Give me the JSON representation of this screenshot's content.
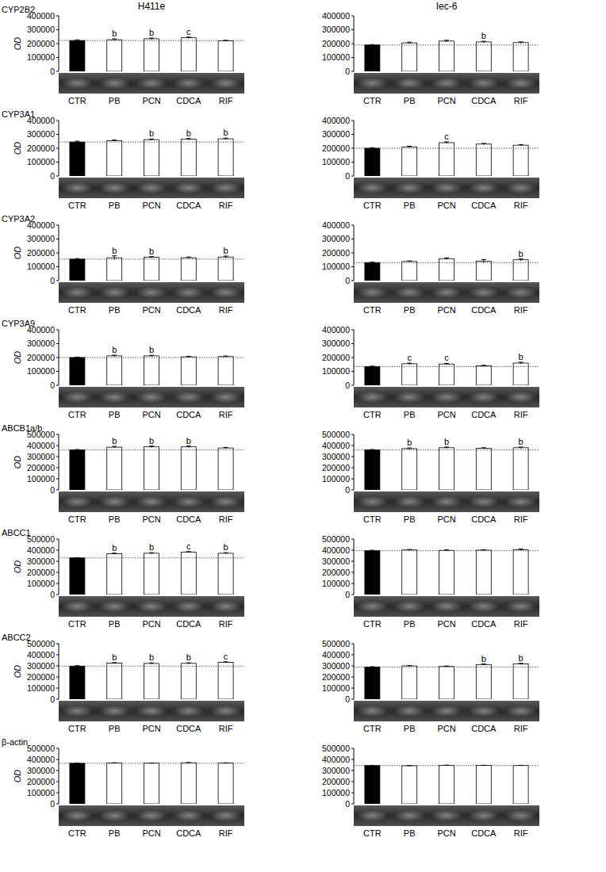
{
  "chart_data": [
    {
      "type": "bar",
      "title": "CYP2B2",
      "subtitle": "H411e",
      "y_label": "OD",
      "categories": [
        "CTR",
        "PB",
        "PCN",
        "CDCA",
        "RIF"
      ],
      "values": [
        222000,
        228000,
        235000,
        242000,
        220000
      ],
      "errors": [
        5000,
        6000,
        5000,
        5000,
        4000
      ],
      "annotations": [
        null,
        "b",
        "b",
        "c",
        null
      ],
      "colors": [
        "#000000",
        "#ffffff",
        "#ffffff",
        "#ffffff",
        "#ffffff"
      ],
      "ylim": [
        0,
        400000
      ],
      "yticks": [
        0,
        100000,
        200000,
        300000,
        400000
      ]
    },
    {
      "type": "bar",
      "subtitle": "Iec-6",
      "categories": [
        "CTR",
        "PB",
        "PCN",
        "CDCA",
        "RIF"
      ],
      "values": [
        190000,
        205000,
        218000,
        212000,
        207000
      ],
      "errors": [
        3000,
        5000,
        6000,
        5000,
        5000
      ],
      "annotations": [
        null,
        null,
        null,
        "b",
        null
      ],
      "colors": [
        "#000000",
        "#ffffff",
        "#ffffff",
        "#ffffff",
        "#ffffff"
      ],
      "ylim": [
        0,
        400000
      ],
      "yticks": [
        0,
        100000,
        200000,
        300000,
        400000
      ]
    },
    {
      "type": "bar",
      "title": "CYP3A1",
      "y_label": "OD",
      "categories": [
        "CTR",
        "PB",
        "PCN",
        "CDCA",
        "RIF"
      ],
      "values": [
        245000,
        255000,
        262000,
        265000,
        268000
      ],
      "errors": [
        6000,
        4000,
        4000,
        5000,
        5000
      ],
      "annotations": [
        null,
        null,
        "b",
        "b",
        "b"
      ],
      "colors": [
        "#000000",
        "#ffffff",
        "#ffffff",
        "#ffffff",
        "#ffffff"
      ],
      "ylim": [
        0,
        400000
      ],
      "yticks": [
        0,
        100000,
        200000,
        300000,
        400000
      ]
    },
    {
      "type": "bar",
      "categories": [
        "CTR",
        "PB",
        "PCN",
        "CDCA",
        "RIF"
      ],
      "values": [
        200000,
        210000,
        240000,
        230000,
        222000
      ],
      "errors": [
        4000,
        5000,
        6000,
        5000,
        4000
      ],
      "annotations": [
        null,
        null,
        "c",
        null,
        null
      ],
      "colors": [
        "#000000",
        "#ffffff",
        "#ffffff",
        "#ffffff",
        "#ffffff"
      ],
      "ylim": [
        0,
        400000
      ],
      "yticks": [
        0,
        100000,
        200000,
        300000,
        400000
      ]
    },
    {
      "type": "bar",
      "title": "CYP3A2",
      "y_label": "OD",
      "categories": [
        "CTR",
        "PB",
        "PCN",
        "CDCA",
        "RIF"
      ],
      "values": [
        155000,
        165000,
        168000,
        165000,
        170000
      ],
      "errors": [
        4000,
        14000,
        5000,
        5000,
        7000
      ],
      "annotations": [
        null,
        "b",
        "b",
        null,
        "b"
      ],
      "colors": [
        "#000000",
        "#ffffff",
        "#ffffff",
        "#ffffff",
        "#ffffff"
      ],
      "ylim": [
        0,
        400000
      ],
      "yticks": [
        0,
        100000,
        200000,
        300000,
        400000
      ]
    },
    {
      "type": "bar",
      "categories": [
        "CTR",
        "PB",
        "PCN",
        "CDCA",
        "RIF"
      ],
      "values": [
        130000,
        138000,
        158000,
        140000,
        150000
      ],
      "errors": [
        3000,
        4000,
        6000,
        12000,
        6000
      ],
      "annotations": [
        null,
        null,
        null,
        null,
        "b"
      ],
      "colors": [
        "#000000",
        "#ffffff",
        "#ffffff",
        "#ffffff",
        "#ffffff"
      ],
      "ylim": [
        0,
        400000
      ],
      "yticks": [
        0,
        100000,
        200000,
        300000,
        400000
      ]
    },
    {
      "type": "bar",
      "title": "CYP3A9",
      "y_label": "OD",
      "categories": [
        "CTR",
        "PB",
        "PCN",
        "CDCA",
        "RIF"
      ],
      "values": [
        200000,
        212000,
        212000,
        205000,
        207000
      ],
      "errors": [
        3000,
        5000,
        4000,
        4000,
        4000
      ],
      "annotations": [
        null,
        "b",
        "b",
        null,
        null
      ],
      "colors": [
        "#000000",
        "#ffffff",
        "#ffffff",
        "#ffffff",
        "#ffffff"
      ],
      "ylim": [
        0,
        400000
      ],
      "yticks": [
        0,
        100000,
        200000,
        300000,
        400000
      ]
    },
    {
      "type": "bar",
      "categories": [
        "CTR",
        "PB",
        "PCN",
        "CDCA",
        "RIF"
      ],
      "values": [
        135000,
        155000,
        153000,
        140000,
        160000
      ],
      "errors": [
        3000,
        5000,
        5000,
        4000,
        6000
      ],
      "annotations": [
        null,
        "c",
        "c",
        null,
        "b"
      ],
      "colors": [
        "#000000",
        "#ffffff",
        "#ffffff",
        "#ffffff",
        "#ffffff"
      ],
      "ylim": [
        0,
        400000
      ],
      "yticks": [
        0,
        100000,
        200000,
        300000,
        400000
      ]
    },
    {
      "type": "bar",
      "title": "ABCB1a/b",
      "y_label": "OD",
      "categories": [
        "CTR",
        "PB",
        "PCN",
        "CDCA",
        "RIF"
      ],
      "values": [
        360000,
        385000,
        388000,
        388000,
        378000
      ],
      "errors": [
        4000,
        8000,
        7000,
        7000,
        5000
      ],
      "annotations": [
        null,
        "b",
        "b",
        "b",
        null
      ],
      "colors": [
        "#000000",
        "#ffffff",
        "#ffffff",
        "#ffffff",
        "#ffffff"
      ],
      "ylim": [
        0,
        500000
      ],
      "yticks": [
        0,
        100000,
        200000,
        300000,
        400000,
        500000
      ]
    },
    {
      "type": "bar",
      "categories": [
        "CTR",
        "PB",
        "PCN",
        "CDCA",
        "RIF"
      ],
      "values": [
        360000,
        372000,
        380000,
        375000,
        380000
      ],
      "errors": [
        4000,
        6000,
        6000,
        5000,
        6000
      ],
      "annotations": [
        null,
        "b",
        "b",
        null,
        "b"
      ],
      "colors": [
        "#000000",
        "#ffffff",
        "#ffffff",
        "#ffffff",
        "#ffffff"
      ],
      "ylim": [
        0,
        500000
      ],
      "yticks": [
        0,
        100000,
        200000,
        300000,
        400000,
        500000
      ]
    },
    {
      "type": "bar",
      "title": "ABCC1",
      "y_label": "OD",
      "categories": [
        "CTR",
        "PB",
        "PCN",
        "CDCA",
        "RIF"
      ],
      "values": [
        330000,
        368000,
        372000,
        382000,
        372000
      ],
      "errors": [
        3000,
        5000,
        5000,
        5000,
        5000
      ],
      "annotations": [
        null,
        "b",
        "b",
        "c",
        "b"
      ],
      "colors": [
        "#000000",
        "#ffffff",
        "#ffffff",
        "#ffffff",
        "#ffffff"
      ],
      "ylim": [
        0,
        500000
      ],
      "yticks": [
        0,
        100000,
        200000,
        300000,
        400000,
        500000
      ]
    },
    {
      "type": "bar",
      "categories": [
        "CTR",
        "PB",
        "PCN",
        "CDCA",
        "RIF"
      ],
      "values": [
        395000,
        402000,
        398000,
        400000,
        405000
      ],
      "errors": [
        4000,
        4000,
        4000,
        4000,
        5000
      ],
      "annotations": [
        null,
        null,
        null,
        null,
        null
      ],
      "colors": [
        "#000000",
        "#ffffff",
        "#ffffff",
        "#ffffff",
        "#ffffff"
      ],
      "ylim": [
        0,
        500000
      ],
      "yticks": [
        0,
        100000,
        200000,
        300000,
        400000,
        500000
      ]
    },
    {
      "type": "bar",
      "title": "ABCC2",
      "y_label": "OD",
      "categories": [
        "CTR",
        "PB",
        "PCN",
        "CDCA",
        "RIF"
      ],
      "values": [
        298000,
        325000,
        322000,
        323000,
        332000
      ],
      "errors": [
        4000,
        5000,
        5000,
        5000,
        5000
      ],
      "annotations": [
        null,
        "b",
        "b",
        "b",
        "c"
      ],
      "colors": [
        "#000000",
        "#ffffff",
        "#ffffff",
        "#ffffff",
        "#ffffff"
      ],
      "ylim": [
        0,
        500000
      ],
      "yticks": [
        0,
        100000,
        200000,
        300000,
        400000,
        500000
      ]
    },
    {
      "type": "bar",
      "categories": [
        "CTR",
        "PB",
        "PCN",
        "CDCA",
        "RIF"
      ],
      "values": [
        290000,
        300000,
        295000,
        312000,
        318000
      ],
      "errors": [
        3000,
        4000,
        4000,
        5000,
        5000
      ],
      "annotations": [
        null,
        null,
        null,
        "b",
        "b"
      ],
      "colors": [
        "#000000",
        "#ffffff",
        "#ffffff",
        "#ffffff",
        "#ffffff"
      ],
      "ylim": [
        0,
        500000
      ],
      "yticks": [
        0,
        100000,
        200000,
        300000,
        400000,
        500000
      ]
    },
    {
      "type": "bar",
      "title": "β-actin",
      "y_label": "OD",
      "categories": [
        "CTR",
        "PB",
        "PCN",
        "CDCA",
        "RIF"
      ],
      "values": [
        365000,
        368000,
        366000,
        370000,
        367000
      ],
      "errors": [
        2000,
        2000,
        2000,
        2000,
        2000
      ],
      "annotations": [
        null,
        null,
        null,
        null,
        null
      ],
      "colors": [
        "#000000",
        "#ffffff",
        "#ffffff",
        "#ffffff",
        "#ffffff"
      ],
      "ylim": [
        0,
        500000
      ],
      "yticks": [
        0,
        100000,
        200000,
        300000,
        400000,
        500000
      ]
    },
    {
      "type": "bar",
      "categories": [
        "CTR",
        "PB",
        "PCN",
        "CDCA",
        "RIF"
      ],
      "values": [
        345000,
        343000,
        347000,
        346000,
        345000
      ],
      "errors": [
        2000,
        2000,
        2000,
        2000,
        2000
      ],
      "annotations": [
        null,
        null,
        null,
        null,
        null
      ],
      "colors": [
        "#000000",
        "#ffffff",
        "#ffffff",
        "#ffffff",
        "#ffffff"
      ],
      "ylim": [
        0,
        500000
      ],
      "yticks": [
        0,
        100000,
        200000,
        300000,
        400000,
        500000
      ]
    }
  ]
}
